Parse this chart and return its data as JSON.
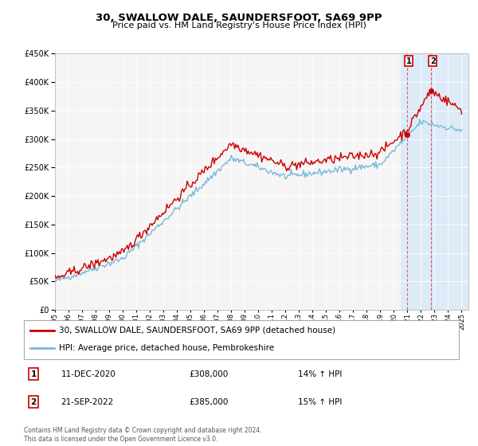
{
  "title": "30, SWALLOW DALE, SAUNDERSFOOT, SA69 9PP",
  "subtitle": "Price paid vs. HM Land Registry's House Price Index (HPI)",
  "ylim": [
    0,
    450000
  ],
  "xlim_start": 1995.0,
  "xlim_end": 2025.5,
  "legend_line1": "30, SWALLOW DALE, SAUNDERSFOOT, SA69 9PP (detached house)",
  "legend_line2": "HPI: Average price, detached house, Pembrokeshire",
  "marker1_date": "11-DEC-2020",
  "marker1_price": "£308,000",
  "marker1_hpi": "14% ↑ HPI",
  "marker1_x": 2020.95,
  "marker1_y": 308000,
  "marker2_date": "21-SEP-2022",
  "marker2_price": "£385,000",
  "marker2_hpi": "15% ↑ HPI",
  "marker2_x": 2022.72,
  "marker2_y": 385000,
  "copyright": "Contains HM Land Registry data © Crown copyright and database right 2024.\nThis data is licensed under the Open Government Licence v3.0.",
  "hpi_color": "#7ab8d9",
  "price_color": "#cc0000",
  "shaded_region_color": "#ddeaf7",
  "shaded_start": 2020.5,
  "shaded_end": 2025.5,
  "bg_color": "#f5f5f5"
}
